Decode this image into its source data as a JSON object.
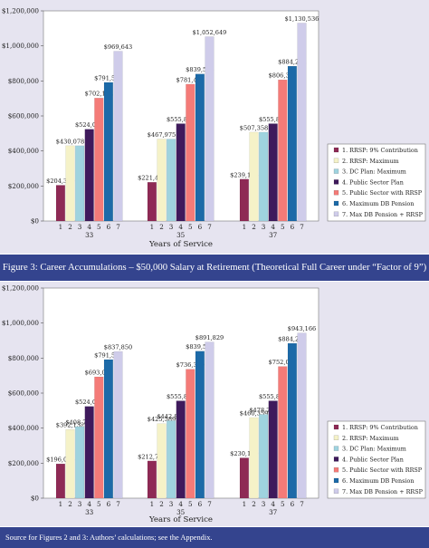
{
  "caption": "Figure 3: Career Accumulations – $50,000 Salary at Retirement (Theoretical Full Career under “Factor of 9”)",
  "source": "Source for Figures 2 and 3: Authors’ calculations; see the Appendix.",
  "legend": [
    {
      "label": "1. RRSP: 9% Contribution",
      "color": "#8e2a55"
    },
    {
      "label": "2. RRSP: Maximum",
      "color": "#f5f2c8"
    },
    {
      "label": "3. DC Plan: Maximum",
      "color": "#9fd3df"
    },
    {
      "label": "4. Public Sector Plan",
      "color": "#3f1a5c"
    },
    {
      "label": "5. Public Sector with RRSP",
      "color": "#f47b78"
    },
    {
      "label": "6. Maximum DB Pension",
      "color": "#1c6aa8"
    },
    {
      "label": "7. Max DB Pension + RRSP",
      "color": "#cfccea"
    }
  ],
  "chart_data": [
    {
      "type": "bar",
      "xlabel": "Years of Service",
      "ylim": [
        0,
        1200000
      ],
      "yticks": [
        "$0",
        "$200,000",
        "$400,000",
        "$600,000",
        "$800,000",
        "$1,000,000",
        "$1,200,000"
      ],
      "groups": [
        "33",
        "35",
        "37"
      ],
      "bar_numbers": [
        "1",
        "2",
        "3",
        "4",
        "5",
        "6",
        "7"
      ],
      "series_values": [
        [
          204350,
          430078,
          430078,
          524076,
          702164,
          791555,
          969643
        ],
        [
          221403,
          467975,
          467975,
          555839,
          781425,
          839528,
          1052649
        ],
        [
          239126,
          507358,
          507358,
          555839,
          806375,
          884244,
          1130536
        ]
      ],
      "series_labels": [
        [
          "$204,350",
          "$430,078",
          "",
          "$524,076",
          "$702,164",
          "$791,555",
          "$969,643"
        ],
        [
          "$221,403",
          "$467,975",
          "",
          "$555,839",
          "$781,425",
          "$839,528",
          "$1,052,649"
        ],
        [
          "$239,126",
          "$507,358",
          "",
          "$555,839",
          "$806,375",
          "$884,244",
          "$1,130,536"
        ]
      ]
    },
    {
      "type": "bar",
      "xlabel": "Years of Service",
      "ylim": [
        0,
        1200000
      ],
      "yticks": [
        "$0",
        "$200,000",
        "$400,000",
        "$600,000",
        "$800,000",
        "$1,000,000",
        "$1,200,000"
      ],
      "groups": [
        "33",
        "35",
        "37"
      ],
      "bar_numbers": [
        "1",
        "2",
        "3",
        "4",
        "5",
        "6",
        "7"
      ],
      "series_values": [
        [
          196066,
          392132,
          408700,
          524076,
          693071,
          791555,
          837850
        ],
        [
          212795,
          425589,
          442807,
          555839,
          736380,
          839528,
          891829
        ],
        [
          230179,
          460359,
          478251,
          555839,
          752097,
          884244,
          943166
        ]
      ],
      "series_labels": [
        [
          "$196,066",
          "$392,132",
          "$408,700",
          "$524,076",
          "$693,071",
          "$791,555",
          "$837,850"
        ],
        [
          "$212,795",
          "$425,589",
          "$442,807",
          "$555,839",
          "$736,380",
          "$839,528",
          "$891,829"
        ],
        [
          "$230,179",
          "$460,359",
          "$478,251",
          "$555,839",
          "$752,097",
          "$884,244",
          "$943,166"
        ]
      ]
    }
  ]
}
